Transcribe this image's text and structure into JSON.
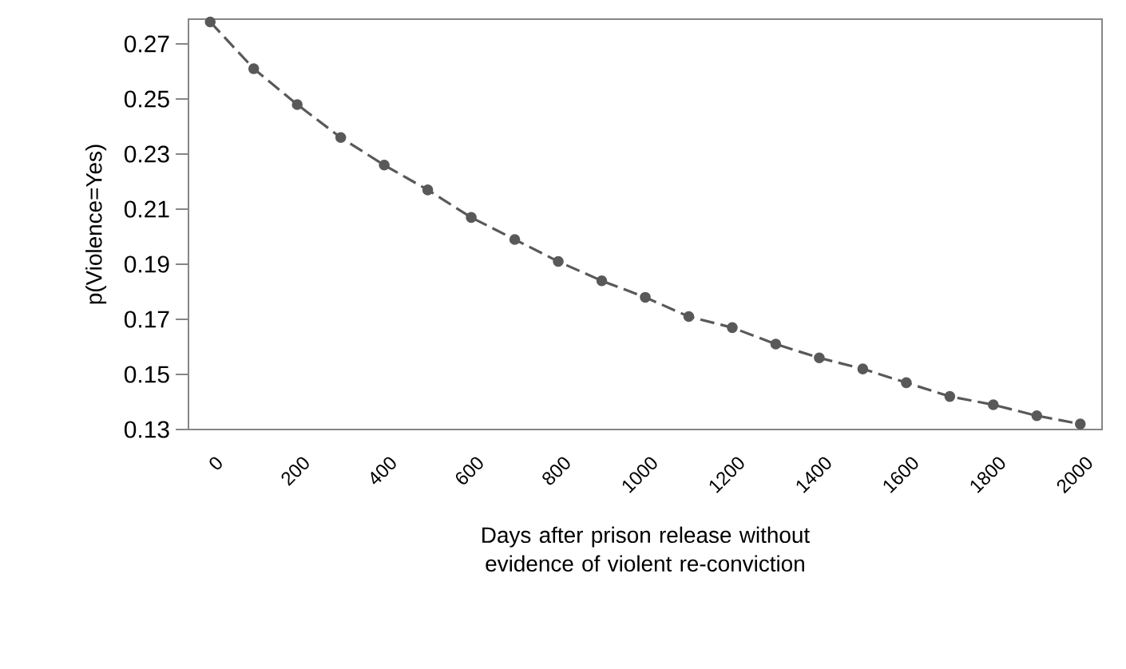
{
  "chart_data": {
    "type": "line",
    "xlabel": "Days after prison release without  evidence of violent re-conviction",
    "ylabel": "p(Violence=Yes)",
    "categories": [
      "0",
      null,
      "200",
      null,
      "400",
      null,
      "600",
      null,
      "800",
      null,
      "1000",
      null,
      "1200",
      null,
      "1400",
      null,
      "1600",
      null,
      "1800",
      null,
      "2000"
    ],
    "series": [
      {
        "color": "#595959",
        "values": [
          0.278,
          0.261,
          0.248,
          0.236,
          0.226,
          0.217,
          0.207,
          0.199,
          0.191,
          0.184,
          0.178,
          0.171,
          0.167,
          0.161,
          0.156,
          0.152,
          0.147,
          0.142,
          0.139,
          0.135,
          0.132
        ]
      }
    ],
    "ylim": [
      0.13,
      0.279
    ],
    "yticks": [
      0.13,
      0.15,
      0.17,
      0.19,
      0.21,
      0.23,
      0.25,
      0.27
    ],
    "marker": "circle",
    "line_style": "dashed"
  }
}
